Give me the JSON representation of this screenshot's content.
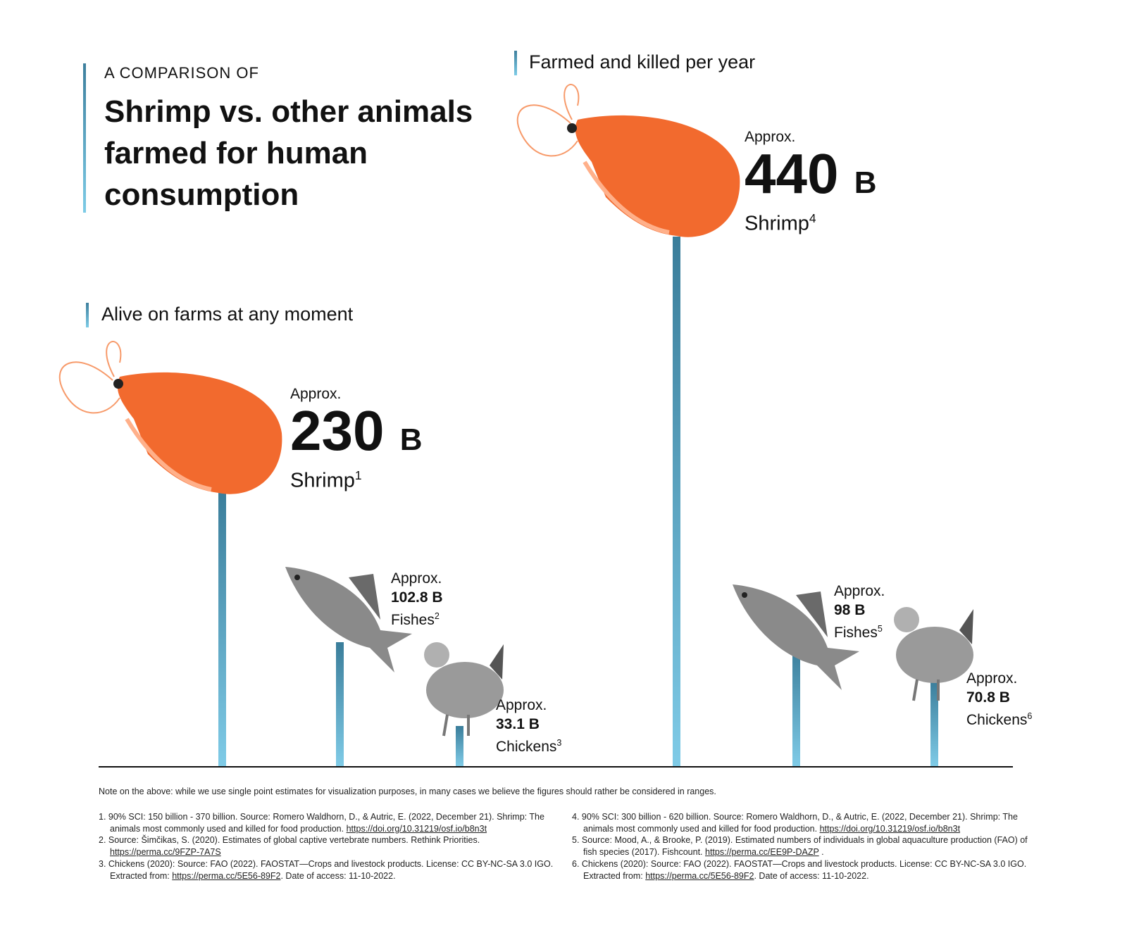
{
  "header": {
    "kicker": "A COMPARISON OF",
    "title_lines": [
      "Shrimp vs. other animals",
      "farmed for human",
      "consumption"
    ]
  },
  "chart_data": {
    "type": "bar",
    "title": "Shrimp vs. other animals farmed for human consumption",
    "unit": "billions",
    "groups": [
      {
        "label": "Alive on farms at any moment",
        "items": [
          {
            "animal": "Shrimp",
            "value": 230,
            "approx": "Approx.",
            "display": "230",
            "unit": "B",
            "note": "1"
          },
          {
            "animal": "Fishes",
            "value": 102.8,
            "approx": "Approx.",
            "display": "102.8 B",
            "note": "2"
          },
          {
            "animal": "Chickens",
            "value": 33.1,
            "approx": "Approx.",
            "display": "33.1 B",
            "note": "3"
          }
        ]
      },
      {
        "label": "Farmed and killed per year",
        "items": [
          {
            "animal": "Shrimp",
            "value": 440,
            "approx": "Approx.",
            "display": "440",
            "unit": "B",
            "note": "4"
          },
          {
            "animal": "Fishes",
            "value": 98,
            "approx": "Approx.",
            "display": "98 B",
            "note": "5"
          },
          {
            "animal": "Chickens",
            "value": 70.8,
            "approx": "Approx.",
            "display": "70.8 B",
            "note": "6"
          }
        ]
      }
    ],
    "colors": {
      "bar_top": "#3a7d9a",
      "bar_bottom": "#7fcbe7",
      "shrimp": "#f26a2e"
    }
  },
  "note": "Note on the above: while we use single point estimates for visualization purposes, in many cases we believe the figures should rather be considered in ranges.",
  "footnotes": [
    {
      "text": "1. 90% SCI: 150 billion - 370 billion. Source: Romero Waldhorn, D., & Autric, E. (2022, December 21). Shrimp: The animals most commonly used and killed for food production. ",
      "link": "https://doi.org/10.31219/osf.io/b8n3t",
      "after": ""
    },
    {
      "text": "2.  Source: Šimčikas, S. (2020). Estimates of global captive vertebrate numbers. Rethink Priorities. ",
      "link": "https://perma.cc/9FZP-7A7S",
      "after": ""
    },
    {
      "text": "3.  Chickens (2020): Source: FAO (2022). FAOSTAT—Crops and livestock products. License: CC BY-NC-SA 3.0 IGO. Extracted from: ",
      "link": "https://perma.cc/5E56-89F2",
      "after": ". Date of access: 11-10-2022."
    },
    {
      "text": "4. 90% SCI: 300 billion - 620 billion. Source: Romero Waldhorn, D., & Autric, E. (2022, December 21). Shrimp: The animals most commonly used and killed for food production. ",
      "link": "https://doi.org/10.31219/osf.io/b8n3t",
      "after": ""
    },
    {
      "text": "5. Source: Mood, A., & Brooke, P. (2019). Estimated numbers of individuals in global aquaculture production (FAO) of fish species (2017). Fishcount. ",
      "link": "https://perma.cc/EE9P-DAZP",
      "after": " ."
    },
    {
      "text": "6. Chickens (2020): Source: FAO (2022). FAOSTAT—Crops and livestock products. License: CC BY-NC-SA 3.0 IGO. Extracted from: ",
      "link": "https://perma.cc/5E56-89F2",
      "after": ". Date of access: 11-10-2022."
    }
  ]
}
